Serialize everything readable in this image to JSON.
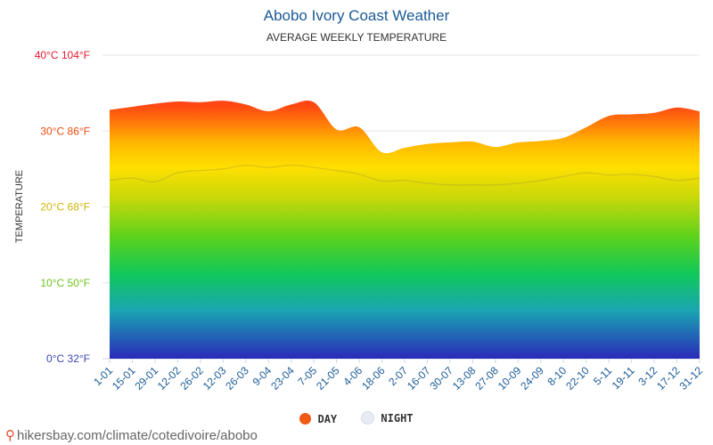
{
  "title": "Abobo Ivory Coast Weather",
  "subtitle": "AVERAGE WEEKLY TEMPERATURE",
  "footer": {
    "source": "hikersbay.com/climate/cotedivoire/abobo",
    "icon": "map-pin-icon"
  },
  "legend": [
    {
      "label": "DAY",
      "color": "#f05a14"
    },
    {
      "label": "NIGHT",
      "color": "#e6ecf2"
    }
  ],
  "chart_data": {
    "type": "area",
    "title": "Abobo Ivory Coast Weather",
    "subtitle": "AVERAGE WEEKLY TEMPERATURE",
    "ylabel": "TEMPERATURE",
    "ylim": [
      0,
      40
    ],
    "yticks": [
      {
        "value": 0,
        "label": "0°C 32°F",
        "color": "#3b44b4"
      },
      {
        "value": 10,
        "label": "10°C 50°F",
        "color": "#6cc21c"
      },
      {
        "value": 20,
        "label": "20°C 68°F",
        "color": "#d2b40a"
      },
      {
        "value": 30,
        "label": "30°C 86°F",
        "color": "#f04a10"
      },
      {
        "value": 40,
        "label": "40°C 104°F",
        "color": "#e8182c"
      }
    ],
    "xticks": [
      "1-01",
      "15-01",
      "29-01",
      "12-02",
      "26-02",
      "12-03",
      "26-03",
      "9-04",
      "23-04",
      "7-05",
      "21-05",
      "4-06",
      "18-06",
      "2-07",
      "16-07",
      "30-07",
      "13-08",
      "27-08",
      "10-09",
      "24-09",
      "8-10",
      "22-10",
      "5-11",
      "19-11",
      "3-12",
      "17-12",
      "31-12"
    ],
    "grid": true,
    "legend_position": "bottom",
    "series": [
      {
        "name": "DAY",
        "values": [
          32.8,
          33.2,
          33.6,
          33.9,
          33.8,
          34.0,
          33.5,
          32.6,
          33.5,
          33.8,
          30.2,
          30.5,
          27.2,
          27.8,
          28.3,
          28.5,
          28.6,
          27.9,
          28.5,
          28.7,
          29.1,
          30.5,
          32.0,
          32.2,
          32.4,
          33.1,
          32.6
        ]
      },
      {
        "name": "NIGHT",
        "values": [
          23.5,
          23.8,
          23.3,
          24.5,
          24.8,
          25.0,
          25.5,
          25.2,
          25.5,
          25.2,
          24.8,
          24.3,
          23.4,
          23.5,
          23.1,
          22.9,
          22.9,
          22.9,
          23.1,
          23.5,
          24.0,
          24.5,
          24.2,
          24.3,
          24.0,
          23.5,
          23.8
        ]
      }
    ]
  }
}
